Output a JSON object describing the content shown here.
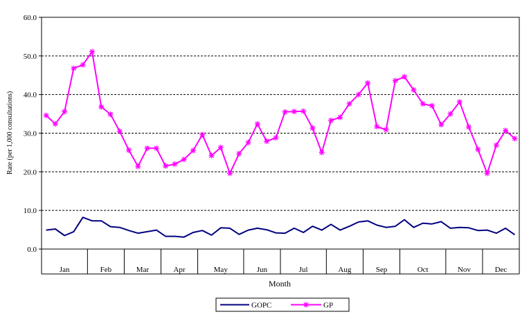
{
  "chart_data": {
    "type": "line",
    "title": "",
    "xlabel": "Month",
    "ylabel": "Rate (per 1,000 consultations)",
    "ylim": [
      0,
      60
    ],
    "yticks": [
      "0.0",
      "10.0",
      "20.0",
      "30.0",
      "40.0",
      "50.0",
      "60.0"
    ],
    "grid": "horizontal dashed",
    "legend_position": "bottom",
    "months": [
      "Jan",
      "Feb",
      "Mar",
      "Apr",
      "May",
      "Jun",
      "Jul",
      "Aug",
      "Sep",
      "Oct",
      "Nov",
      "Dec"
    ],
    "weeks_per_month": [
      5,
      4,
      4,
      4,
      5,
      4,
      5,
      4,
      4,
      5,
      4,
      4
    ],
    "series": [
      {
        "name": "GOPC",
        "color": "#000080",
        "marker": "none",
        "values": [
          4.9,
          5.2,
          3.5,
          4.5,
          8.2,
          7.3,
          7.3,
          5.8,
          5.6,
          4.8,
          4.1,
          4.5,
          4.9,
          3.3,
          3.3,
          3.1,
          4.3,
          4.8,
          3.6,
          5.5,
          5.4,
          3.8,
          4.9,
          5.4,
          5.0,
          4.2,
          4.1,
          5.4,
          4.3,
          5.9,
          4.9,
          6.4,
          4.9,
          5.9,
          7.0,
          7.3,
          6.2,
          5.6,
          5.9,
          7.6,
          5.6,
          6.7,
          6.5,
          7.1,
          5.4,
          5.6,
          5.5,
          4.8,
          4.9,
          4.1,
          5.4,
          3.7
        ]
      },
      {
        "name": "GP",
        "color": "#ff00ff",
        "marker": "star",
        "values": [
          34.6,
          32.4,
          35.6,
          46.8,
          47.7,
          51.1,
          36.8,
          34.9,
          30.5,
          25.6,
          21.4,
          26.1,
          26.1,
          21.5,
          22.0,
          23.2,
          25.5,
          29.6,
          24.2,
          26.3,
          19.6,
          24.7,
          27.6,
          32.4,
          27.9,
          28.8,
          35.5,
          35.6,
          35.7,
          31.3,
          25.0,
          33.3,
          34.1,
          37.6,
          40.0,
          43.0,
          31.7,
          30.9,
          43.6,
          44.6,
          41.2,
          37.6,
          37.1,
          32.2,
          35.0,
          38.1,
          31.6,
          25.8,
          19.6,
          26.9,
          30.7,
          28.6
        ]
      }
    ]
  }
}
